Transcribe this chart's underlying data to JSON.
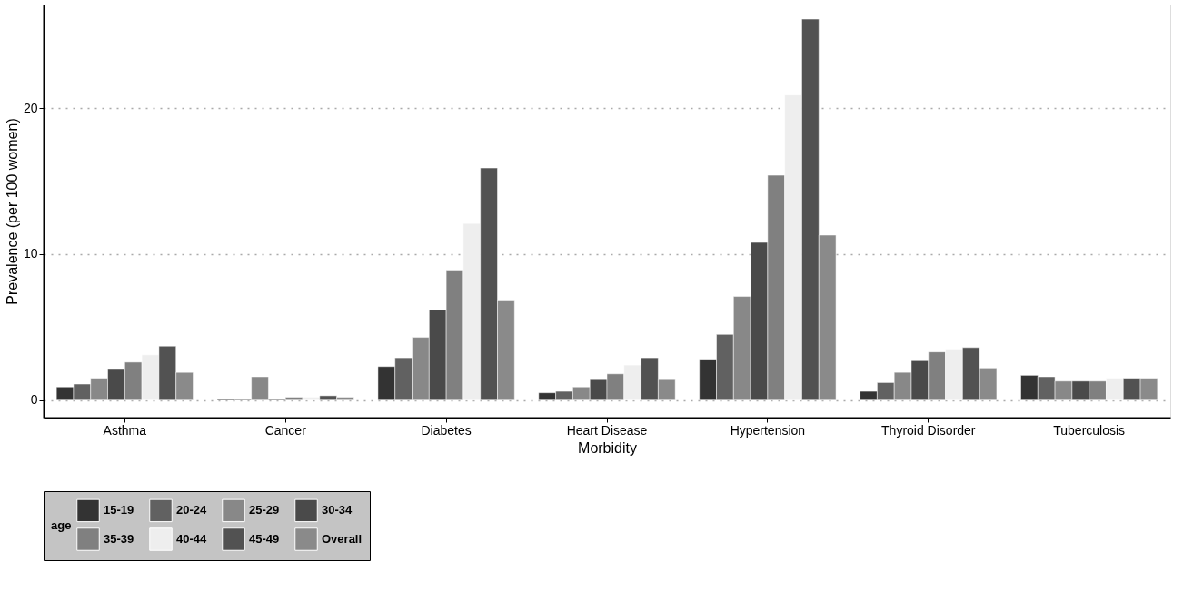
{
  "chart_data": {
    "type": "bar",
    "xlabel": "Morbidity",
    "ylabel": "Prevalence (per 100 women)",
    "legend_title": "age",
    "categories": [
      "Asthma",
      "Cancer",
      "Diabetes",
      "Heart Disease",
      "Hypertension",
      "Thyroid Disorder",
      "Tuberculosis"
    ],
    "series": [
      {
        "name": "15-19",
        "color": "#333333",
        "values": [
          0.9,
          0.1,
          2.3,
          0.5,
          2.8,
          0.6,
          1.7
        ]
      },
      {
        "name": "20-24",
        "color": "#616161",
        "values": [
          1.1,
          0.1,
          2.9,
          0.6,
          4.5,
          1.2,
          1.6
        ]
      },
      {
        "name": "25-29",
        "color": "#888888",
        "values": [
          1.5,
          1.6,
          4.3,
          0.9,
          7.1,
          1.9,
          1.3
        ]
      },
      {
        "name": "30-34",
        "color": "#4a4a4a",
        "values": [
          2.1,
          0.1,
          6.2,
          1.4,
          10.8,
          2.7,
          1.3
        ]
      },
      {
        "name": "35-39",
        "color": "#808080",
        "values": [
          2.6,
          0.2,
          8.9,
          1.8,
          15.4,
          3.3,
          1.3
        ]
      },
      {
        "name": "40-44",
        "color": "#eeeeee",
        "values": [
          3.1,
          0.2,
          12.1,
          2.4,
          20.9,
          3.5,
          1.5
        ]
      },
      {
        "name": "45-49",
        "color": "#525252",
        "values": [
          3.7,
          0.3,
          15.9,
          2.9,
          26.1,
          3.6,
          1.5
        ]
      },
      {
        "name": "Overall",
        "color": "#8a8a8a",
        "values": [
          1.9,
          0.2,
          6.8,
          1.4,
          11.3,
          2.2,
          1.5
        ]
      }
    ],
    "ylim": [
      -1.2,
      27.1
    ],
    "yticks": [
      0,
      10,
      20
    ],
    "grid": "y",
    "legend": "bottom"
  }
}
